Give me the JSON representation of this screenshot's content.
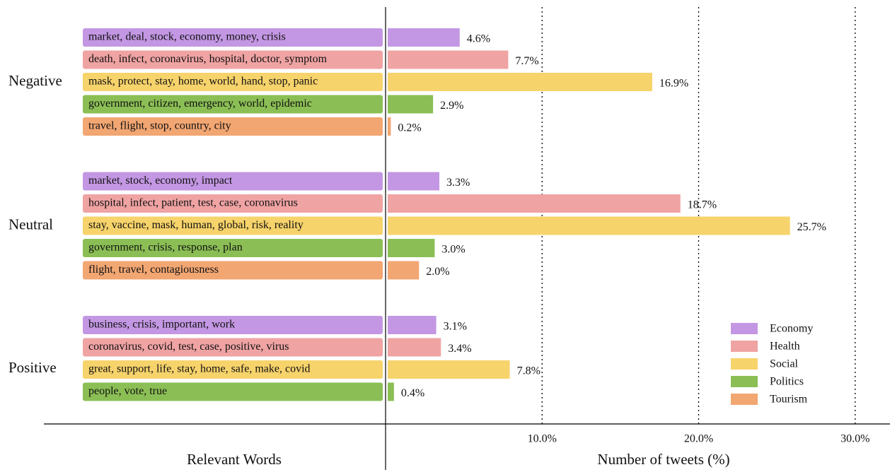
{
  "chart_data": {
    "type": "bar",
    "orientation": "horizontal",
    "xlabel": "Number of tweets (%)",
    "words_label": "Relevant Words",
    "xlim": [
      0,
      32
    ],
    "xticks": [
      {
        "value": 10,
        "label": "10.0%"
      },
      {
        "value": 20,
        "label": "20.0%"
      },
      {
        "value": 30,
        "label": "30.0%"
      }
    ],
    "grid": true,
    "legend_position": "lower right",
    "series": [
      {
        "name": "Economy",
        "color": "#c397e3"
      },
      {
        "name": "Health",
        "color": "#f0a3a3"
      },
      {
        "name": "Social",
        "color": "#f7d36b"
      },
      {
        "name": "Politics",
        "color": "#8bbf55"
      },
      {
        "name": "Tourism",
        "color": "#f2a672"
      }
    ],
    "groups": [
      {
        "name": "Negative",
        "categories": [
          "market, deal, stock, economy, money, crisis",
          "death, infect, coronavirus, hospital, doctor, symptom",
          "mask, protect, stay, home, world, hand, stop, panic",
          "government, citizen, emergency, world, epidemic",
          "travel, flight, stop, country, city"
        ],
        "topics": [
          "Economy",
          "Health",
          "Social",
          "Politics",
          "Tourism"
        ],
        "values": [
          4.6,
          7.7,
          16.9,
          2.9,
          0.2
        ],
        "value_labels": [
          "4.6%",
          "7.7%",
          "16.9%",
          "2.9%",
          "0.2%"
        ]
      },
      {
        "name": "Neutral",
        "categories": [
          "market, stock, economy, impact",
          "hospital, infect, patient, test, case, coronavirus",
          "stay, vaccine, mask, human, global, risk, reality",
          "government, crisis, response, plan",
          "flight, travel, contagiousness"
        ],
        "topics": [
          "Economy",
          "Health",
          "Social",
          "Politics",
          "Tourism"
        ],
        "values": [
          3.3,
          18.7,
          25.7,
          3.0,
          2.0
        ],
        "value_labels": [
          "3.3%",
          "18.7%",
          "25.7%",
          "3.0%",
          "2.0%"
        ]
      },
      {
        "name": "Positive",
        "categories": [
          "business, crisis, important, work",
          "coronavirus, covid, test, case, positive, virus",
          "great, support, life, stay, home, safe, make, covid",
          "people, vote, true"
        ],
        "topics": [
          "Economy",
          "Health",
          "Social",
          "Politics"
        ],
        "values": [
          3.1,
          3.4,
          7.8,
          0.4
        ],
        "value_labels": [
          "3.1%",
          "3.4%",
          "7.8%",
          "0.4%"
        ]
      }
    ]
  }
}
